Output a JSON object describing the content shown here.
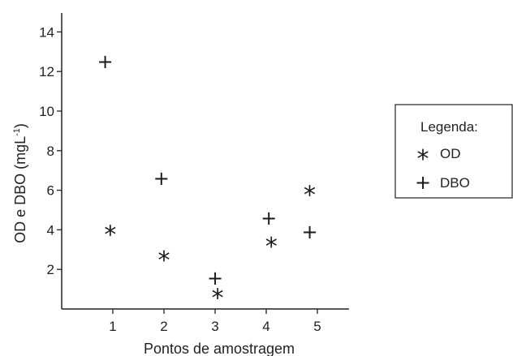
{
  "chart_data": {
    "type": "scatter",
    "xlabel": "Pontos de amostragem",
    "ylabel": "OD e DBO (mgL",
    "ylabel_sup": "-1",
    "ylabel_close": ")",
    "xticks": [
      "1",
      "2",
      "3",
      "4",
      "5"
    ],
    "yticks": [
      "2",
      "4",
      "6",
      "8",
      "10",
      "12",
      "14"
    ],
    "xlim": [
      0.5,
      5.9
    ],
    "ylim": [
      0,
      14
    ],
    "grid": false,
    "legend": {
      "title": "Legenda:",
      "placement": "right",
      "entries": [
        {
          "symbol": "*",
          "label": "OD"
        },
        {
          "symbol": "+",
          "label": "DBO"
        }
      ]
    },
    "series": [
      {
        "name": "OD",
        "symbol": "*",
        "points": [
          {
            "x": 0.95,
            "y": 4.0
          },
          {
            "x": 2.0,
            "y": 2.7
          },
          {
            "x": 3.05,
            "y": 0.8
          },
          {
            "x": 4.1,
            "y": 3.4
          },
          {
            "x": 4.85,
            "y": 6.0
          }
        ]
      },
      {
        "name": "DBO",
        "symbol": "+",
        "points": [
          {
            "x": 0.85,
            "y": 12.5
          },
          {
            "x": 1.95,
            "y": 6.6
          },
          {
            "x": 3.0,
            "y": 1.55
          },
          {
            "x": 4.05,
            "y": 4.6
          },
          {
            "x": 4.85,
            "y": 3.9
          }
        ]
      }
    ]
  }
}
